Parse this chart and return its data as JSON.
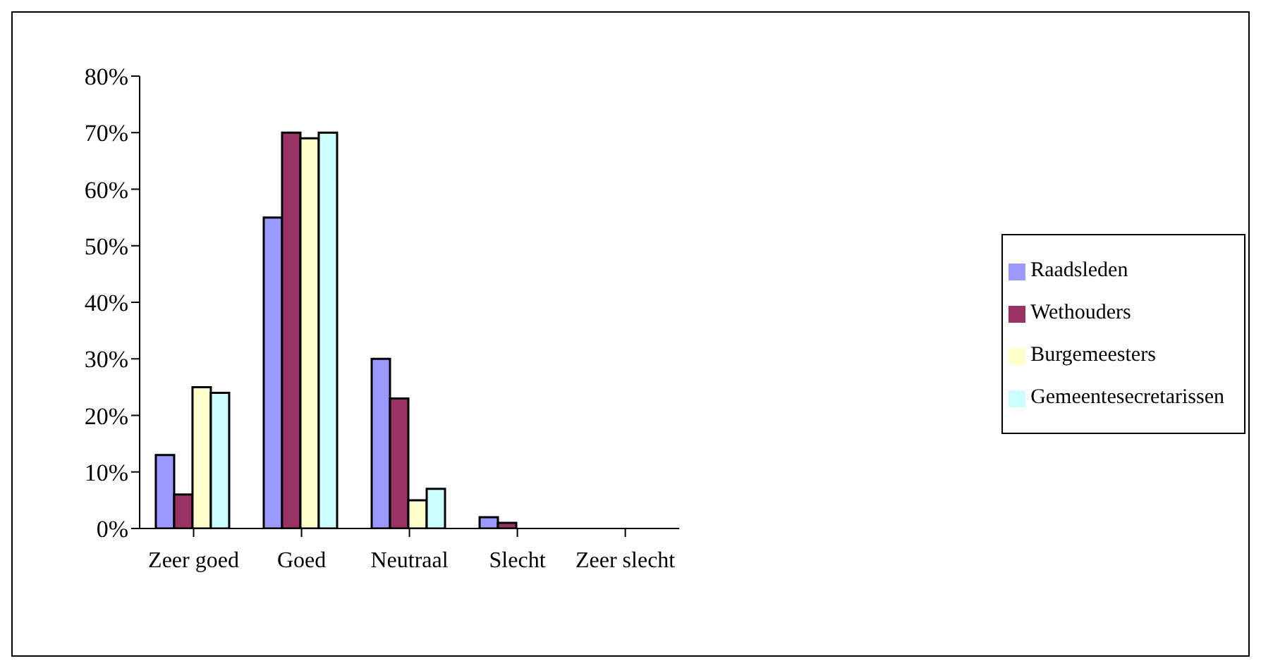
{
  "chart_data": {
    "type": "bar",
    "categories": [
      "Zeer goed",
      "Goed",
      "Neutraal",
      "Slecht",
      "Zeer slecht"
    ],
    "series": [
      {
        "name": "Raadsleden",
        "color": "#9999ff",
        "values": [
          13,
          55,
          30,
          2,
          0
        ]
      },
      {
        "name": "Wethouders",
        "color": "#993366",
        "values": [
          6,
          70,
          23,
          1,
          0
        ]
      },
      {
        "name": "Burgemeesters",
        "color": "#ffffcc",
        "values": [
          25,
          69,
          5,
          0,
          0
        ]
      },
      {
        "name": "Gemeentesecretarissen",
        "color": "#ccffff",
        "values": [
          24,
          70,
          7,
          0,
          0
        ]
      }
    ],
    "ylim": [
      0,
      80
    ],
    "yticks": [
      {
        "value": 0,
        "label": "0%"
      },
      {
        "value": 10,
        "label": "10%"
      },
      {
        "value": 20,
        "label": "20%"
      },
      {
        "value": 30,
        "label": "30%"
      },
      {
        "value": 40,
        "label": "40%"
      },
      {
        "value": 50,
        "label": "50%"
      },
      {
        "value": 60,
        "label": "60%"
      },
      {
        "value": 70,
        "label": "70%"
      },
      {
        "value": 80,
        "label": "80%"
      }
    ],
    "grid": false,
    "legend": "right"
  }
}
